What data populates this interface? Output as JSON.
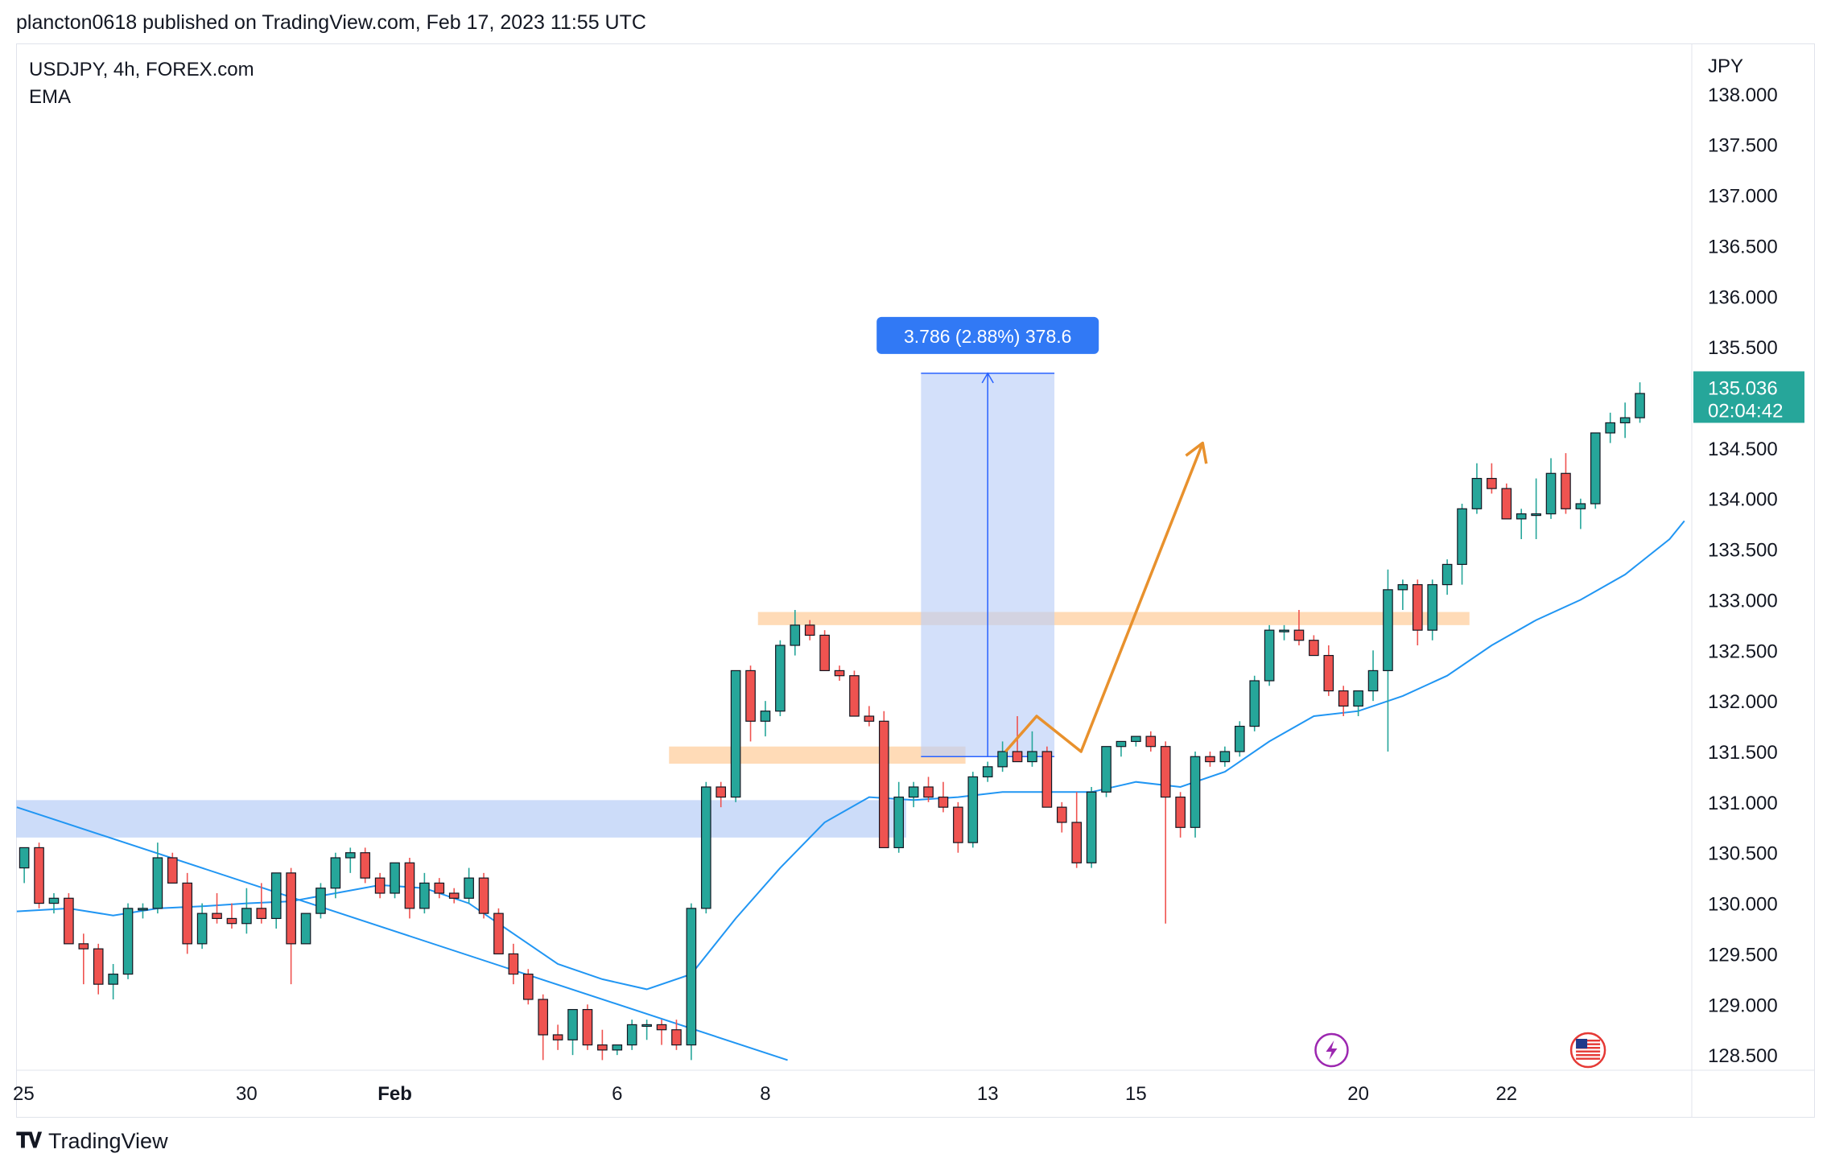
{
  "header": {
    "publisher": "plancton0618 published on TradingView.com, Feb 17, 2023 11:55 UTC"
  },
  "legend": {
    "symbol": "USDJPY, 4h, FOREX.com",
    "indicator": "EMA"
  },
  "footer": {
    "brand": "TradingView"
  },
  "colors": {
    "up": "#26a69a",
    "down": "#ef5350",
    "ema": "#2196f3",
    "zone": "#ffcc99",
    "box": "#bbd0f7",
    "arrow": "#e8912d",
    "badge": "#3179f5"
  },
  "chart_data": {
    "type": "candlestick",
    "title": "USDJPY, 4h, FOREX.com",
    "ylabel": "JPY",
    "ylim": [
      128.35,
      138.5
    ],
    "xlim": [
      -0.55,
      112.5
    ],
    "y_ticks": [
      "128.500",
      "129.000",
      "129.500",
      "130.000",
      "130.500",
      "131.000",
      "131.500",
      "132.000",
      "132.500",
      "133.000",
      "133.500",
      "134.000",
      "134.500",
      "135.000",
      "135.500",
      "136.000",
      "136.500",
      "137.000",
      "137.500",
      "138.000"
    ],
    "x_ticks": [
      {
        "label": "25",
        "i": -0.5
      },
      {
        "label": "30",
        "i": 15
      },
      {
        "label": "Feb",
        "i": 25
      },
      {
        "label": "6",
        "i": 40
      },
      {
        "label": "8",
        "i": 50
      },
      {
        "label": "13",
        "i": 65
      },
      {
        "label": "15",
        "i": 75
      },
      {
        "label": "20",
        "i": 90
      },
      {
        "label": "22",
        "i": 100
      }
    ],
    "candles": [
      [
        130.35,
        130.55,
        130.2,
        130.55
      ],
      [
        130.55,
        130.6,
        129.95,
        130.0
      ],
      [
        130.0,
        130.1,
        129.9,
        130.05
      ],
      [
        130.05,
        130.1,
        129.6,
        129.6
      ],
      [
        129.6,
        129.7,
        129.2,
        129.55
      ],
      [
        129.55,
        129.6,
        129.1,
        129.2
      ],
      [
        129.2,
        129.4,
        129.05,
        129.3
      ],
      [
        129.3,
        130.0,
        129.25,
        129.95
      ],
      [
        129.95,
        130.0,
        129.85,
        129.95
      ],
      [
        129.95,
        130.6,
        129.9,
        130.45
      ],
      [
        130.45,
        130.5,
        130.2,
        130.2
      ],
      [
        130.2,
        130.3,
        129.5,
        129.6
      ],
      [
        129.6,
        130.0,
        129.55,
        129.9
      ],
      [
        129.9,
        130.1,
        129.8,
        129.85
      ],
      [
        129.85,
        130.0,
        129.75,
        129.8
      ],
      [
        129.8,
        130.15,
        129.7,
        129.95
      ],
      [
        129.95,
        130.2,
        129.8,
        129.85
      ],
      [
        129.85,
        130.3,
        129.75,
        130.3
      ],
      [
        130.3,
        130.35,
        129.2,
        129.6
      ],
      [
        129.6,
        129.9,
        129.6,
        129.9
      ],
      [
        129.9,
        130.2,
        129.85,
        130.15
      ],
      [
        130.15,
        130.5,
        130.05,
        130.45
      ],
      [
        130.45,
        130.55,
        130.3,
        130.5
      ],
      [
        130.5,
        130.55,
        130.2,
        130.25
      ],
      [
        130.25,
        130.3,
        130.05,
        130.1
      ],
      [
        130.1,
        130.4,
        130.05,
        130.4
      ],
      [
        130.4,
        130.45,
        129.85,
        129.95
      ],
      [
        129.95,
        130.3,
        129.9,
        130.2
      ],
      [
        130.2,
        130.25,
        130.05,
        130.1
      ],
      [
        130.1,
        130.15,
        130.0,
        130.05
      ],
      [
        130.05,
        130.35,
        130.0,
        130.25
      ],
      [
        130.25,
        130.3,
        129.85,
        129.9
      ],
      [
        129.9,
        129.95,
        129.5,
        129.5
      ],
      [
        129.5,
        129.6,
        129.2,
        129.3
      ],
      [
        129.3,
        129.35,
        129.0,
        129.05
      ],
      [
        129.05,
        129.1,
        128.45,
        128.7
      ],
      [
        128.7,
        128.8,
        128.55,
        128.65
      ],
      [
        128.65,
        128.95,
        128.5,
        128.95
      ],
      [
        128.95,
        129.0,
        128.55,
        128.6
      ],
      [
        128.6,
        128.75,
        128.45,
        128.55
      ],
      [
        128.55,
        128.6,
        128.5,
        128.6
      ],
      [
        128.6,
        128.85,
        128.55,
        128.8
      ],
      [
        128.8,
        128.85,
        128.65,
        128.8
      ],
      [
        128.8,
        128.85,
        128.6,
        128.75
      ],
      [
        128.75,
        128.85,
        128.55,
        128.6
      ],
      [
        128.6,
        130.0,
        128.45,
        129.95
      ],
      [
        129.95,
        131.2,
        129.9,
        131.15
      ],
      [
        131.15,
        131.2,
        130.95,
        131.05
      ],
      [
        131.05,
        132.3,
        131.0,
        132.3
      ],
      [
        132.3,
        132.35,
        131.6,
        131.8
      ],
      [
        131.8,
        132.0,
        131.65,
        131.9
      ],
      [
        131.9,
        132.6,
        131.85,
        132.55
      ],
      [
        132.55,
        132.9,
        132.45,
        132.75
      ],
      [
        132.75,
        132.8,
        132.6,
        132.65
      ],
      [
        132.65,
        132.7,
        132.3,
        132.3
      ],
      [
        132.3,
        132.35,
        132.2,
        132.25
      ],
      [
        132.25,
        132.3,
        131.85,
        131.85
      ],
      [
        131.85,
        131.95,
        131.75,
        131.8
      ],
      [
        131.8,
        131.9,
        130.55,
        130.55
      ],
      [
        130.55,
        131.2,
        130.5,
        131.05
      ],
      [
        131.05,
        131.2,
        130.95,
        131.15
      ],
      [
        131.15,
        131.25,
        131.0,
        131.05
      ],
      [
        131.05,
        131.2,
        130.9,
        130.95
      ],
      [
        130.95,
        131.0,
        130.5,
        130.6
      ],
      [
        130.6,
        131.3,
        130.55,
        131.25
      ],
      [
        131.25,
        131.4,
        131.2,
        131.35
      ],
      [
        131.35,
        131.6,
        131.3,
        131.5
      ],
      [
        131.5,
        131.85,
        131.4,
        131.4
      ],
      [
        131.4,
        131.7,
        131.35,
        131.5
      ],
      [
        131.5,
        131.55,
        130.95,
        130.95
      ],
      [
        130.95,
        131.0,
        130.7,
        130.8
      ],
      [
        130.8,
        131.1,
        130.35,
        130.4
      ],
      [
        130.4,
        131.15,
        130.35,
        131.1
      ],
      [
        131.1,
        131.55,
        131.05,
        131.55
      ],
      [
        131.55,
        131.6,
        131.45,
        131.6
      ],
      [
        131.6,
        131.65,
        131.55,
        131.65
      ],
      [
        131.65,
        131.7,
        131.5,
        131.55
      ],
      [
        131.55,
        131.6,
        129.8,
        131.05
      ],
      [
        131.05,
        131.1,
        130.65,
        130.75
      ],
      [
        130.75,
        131.5,
        130.65,
        131.45
      ],
      [
        131.45,
        131.5,
        131.35,
        131.4
      ],
      [
        131.4,
        131.55,
        131.35,
        131.5
      ],
      [
        131.5,
        131.8,
        131.45,
        131.75
      ],
      [
        131.75,
        132.25,
        131.7,
        132.2
      ],
      [
        132.2,
        132.75,
        132.15,
        132.7
      ],
      [
        132.7,
        132.75,
        132.6,
        132.7
      ],
      [
        132.7,
        132.9,
        132.55,
        132.6
      ],
      [
        132.6,
        132.65,
        132.45,
        132.45
      ],
      [
        132.45,
        132.55,
        132.05,
        132.1
      ],
      [
        132.1,
        132.15,
        131.85,
        131.95
      ],
      [
        131.95,
        132.1,
        131.85,
        132.1
      ],
      [
        132.1,
        132.5,
        132.0,
        132.3
      ],
      [
        132.3,
        133.3,
        131.5,
        133.1
      ],
      [
        133.1,
        133.2,
        132.9,
        133.15
      ],
      [
        133.15,
        133.2,
        132.55,
        132.7
      ],
      [
        132.7,
        133.2,
        132.6,
        133.15
      ],
      [
        133.15,
        133.4,
        133.05,
        133.35
      ],
      [
        133.35,
        133.95,
        133.15,
        133.9
      ],
      [
        133.9,
        134.35,
        133.85,
        134.2
      ],
      [
        134.2,
        134.35,
        134.05,
        134.1
      ],
      [
        134.1,
        134.15,
        133.8,
        133.8
      ],
      [
        133.8,
        133.9,
        133.6,
        133.85
      ],
      [
        133.85,
        134.2,
        133.6,
        133.85
      ],
      [
        133.85,
        134.4,
        133.8,
        134.25
      ],
      [
        134.25,
        134.45,
        133.85,
        133.9
      ],
      [
        133.9,
        134.0,
        133.7,
        133.95
      ],
      [
        133.95,
        134.65,
        133.9,
        134.65
      ],
      [
        134.65,
        134.85,
        134.55,
        134.75
      ],
      [
        134.75,
        134.95,
        134.6,
        134.8
      ],
      [
        134.8,
        135.15,
        134.75,
        135.04
      ]
    ],
    "ema": [
      [
        -0.5,
        129.92
      ],
      [
        3,
        129.95
      ],
      [
        6,
        129.88
      ],
      [
        9,
        129.95
      ],
      [
        12,
        129.97
      ],
      [
        15,
        130.0
      ],
      [
        18,
        130.02
      ],
      [
        21,
        130.1
      ],
      [
        24,
        130.18
      ],
      [
        27,
        130.15
      ],
      [
        30,
        130.0
      ],
      [
        33,
        129.7
      ],
      [
        36,
        129.4
      ],
      [
        39,
        129.25
      ],
      [
        42,
        129.15
      ],
      [
        45,
        129.3
      ],
      [
        48,
        129.85
      ],
      [
        51,
        130.35
      ],
      [
        54,
        130.8
      ],
      [
        57,
        131.05
      ],
      [
        60,
        131.02
      ],
      [
        63,
        131.05
      ],
      [
        66,
        131.1
      ],
      [
        69,
        131.1
      ],
      [
        72,
        131.1
      ],
      [
        75,
        131.2
      ],
      [
        78,
        131.15
      ],
      [
        81,
        131.3
      ],
      [
        84,
        131.6
      ],
      [
        87,
        131.85
      ],
      [
        90,
        131.9
      ],
      [
        93,
        132.05
      ],
      [
        96,
        132.25
      ],
      [
        99,
        132.55
      ],
      [
        102,
        132.8
      ],
      [
        105,
        133.0
      ],
      [
        108,
        133.25
      ],
      [
        111,
        133.6
      ],
      [
        112,
        133.78
      ]
    ],
    "trendline": [
      [
        -0.5,
        130.95
      ],
      [
        51.5,
        128.45
      ]
    ],
    "current_price": "135.036",
    "countdown": "02:04:42",
    "measure": {
      "label": "3.786 (2.88%) 378.6",
      "from_price": 131.45,
      "to_price": 135.24,
      "i_start": 60.5,
      "i_end": 69.5
    },
    "zones": [
      {
        "name": "blue-support",
        "y_low": 130.65,
        "y_high": 131.02,
        "i_start": -0.55,
        "i_end": 59.5
      },
      {
        "name": "orange-lower",
        "y_low": 131.38,
        "y_high": 131.55,
        "i_start": 43.5,
        "i_end": 63.5
      },
      {
        "name": "orange-upper",
        "y_low": 132.75,
        "y_high": 132.88,
        "i_start": 49.5,
        "i_end": 97.5
      }
    ],
    "projection": [
      [
        66.2,
        131.5
      ],
      [
        68.3,
        131.85
      ],
      [
        71.3,
        131.5
      ],
      [
        79.5,
        134.55
      ]
    ],
    "events": [
      {
        "name": "lightning-event-icon",
        "i": 88.2
      },
      {
        "name": "us-flag-event-icon",
        "i": 105.5
      }
    ]
  }
}
